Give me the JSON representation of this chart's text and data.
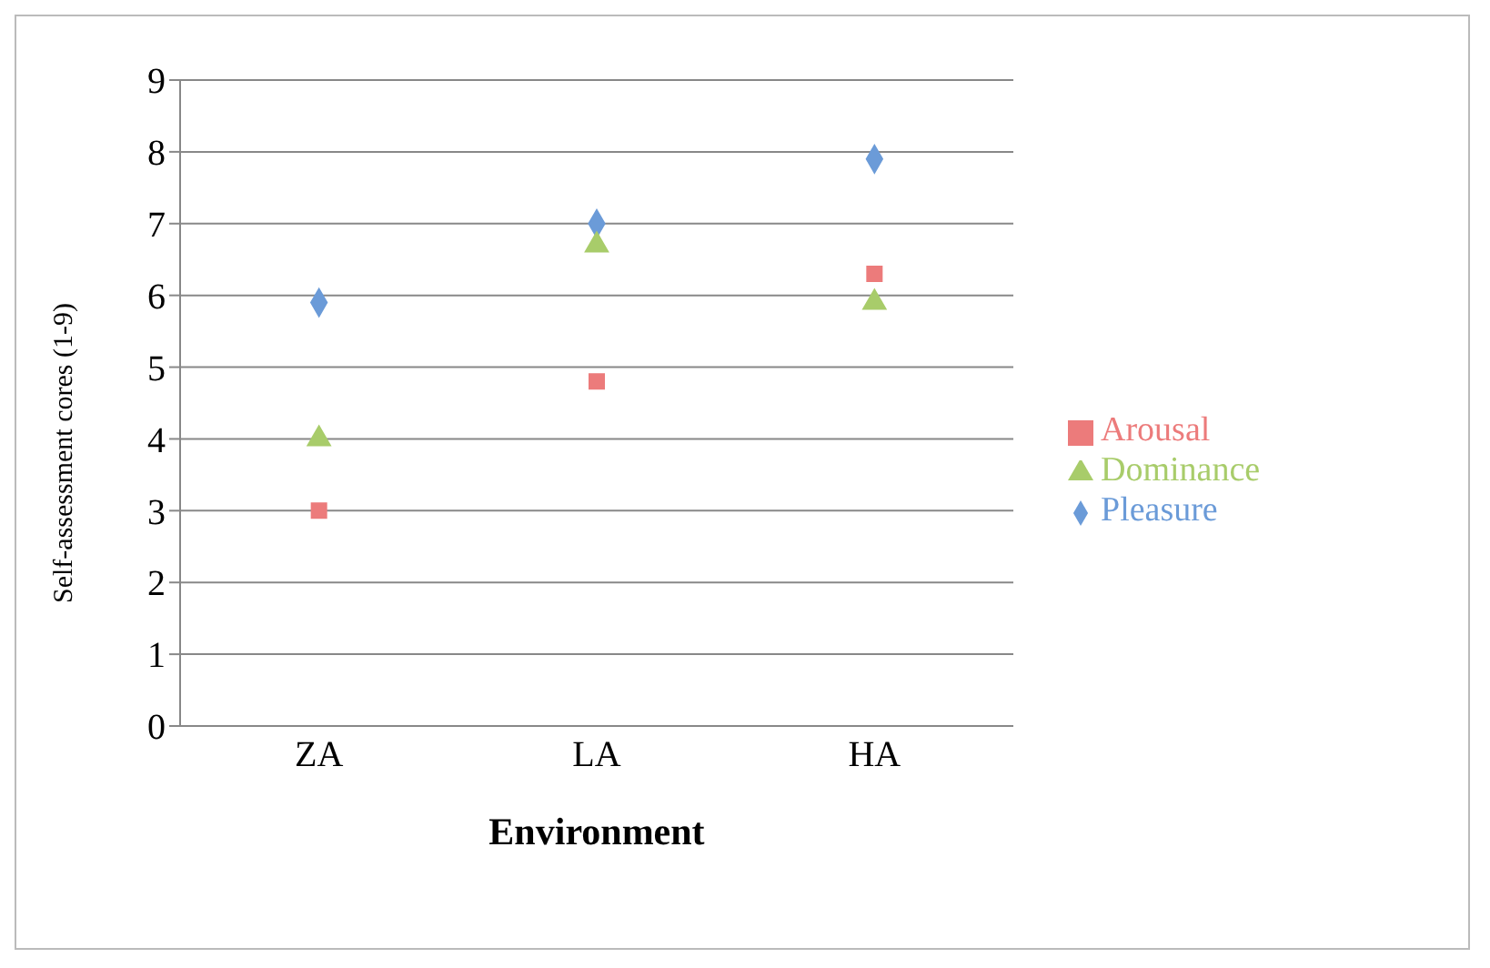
{
  "chart_data": {
    "type": "scatter",
    "xlabel": "Environment",
    "ylabel": "Self-assessment cores (1-9)",
    "categories": [
      "ZA",
      "LA",
      "HA"
    ],
    "series": [
      {
        "name": "Pleasure",
        "color": "#6b9bd8",
        "marker": "diamond",
        "values": [
          5.9,
          7.0,
          7.9
        ]
      },
      {
        "name": "Arousal",
        "color": "#ec7b7b",
        "marker": "square",
        "values": [
          3.0,
          4.8,
          6.3
        ]
      },
      {
        "name": "Dominance",
        "color": "#a8cc6a",
        "marker": "triangle",
        "values": [
          4.0,
          6.7,
          5.9
        ]
      }
    ],
    "ylim": [
      0,
      9
    ],
    "yticks": [
      0,
      1,
      2,
      3,
      4,
      5,
      6,
      7,
      8,
      9
    ],
    "grid": "y",
    "legend": "right"
  }
}
